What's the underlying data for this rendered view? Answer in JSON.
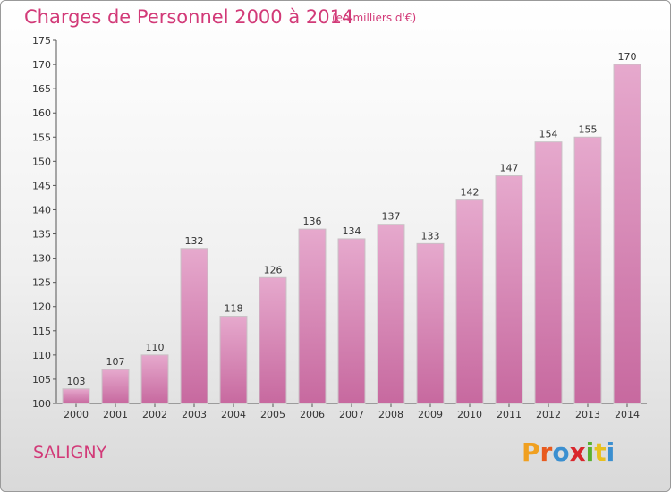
{
  "header": {
    "title": "Charges de Personnel 2000 à 2014",
    "subtitle": "(en milliers d'€)"
  },
  "commune": "SALIGNY",
  "logo": {
    "letters": [
      "P",
      "r",
      "o",
      "x",
      "i",
      "t",
      "i"
    ],
    "colors": [
      "#f0a020",
      "#e85a1e",
      "#3b8fd0",
      "#d9262c",
      "#5ab030",
      "#e8c020",
      "#3b8fd0"
    ]
  },
  "colors": {
    "bar": "#c7699f",
    "bar_light": "#e6a9cd",
    "text": "#d23a78"
  },
  "chart_data": {
    "type": "bar",
    "categories": [
      "2000",
      "2001",
      "2002",
      "2003",
      "2004",
      "2005",
      "2006",
      "2007",
      "2008",
      "2009",
      "2010",
      "2011",
      "2012",
      "2013",
      "2014"
    ],
    "values": [
      103,
      107,
      110,
      132,
      118,
      126,
      136,
      134,
      137,
      133,
      142,
      147,
      154,
      155,
      170
    ],
    "data_labels": [
      "103",
      "107",
      "110",
      "132",
      "118",
      "126",
      "136",
      "134",
      "137",
      "133",
      "142",
      "147",
      "154",
      "155",
      "170"
    ],
    "y_ticks": [
      "100",
      "105",
      "110",
      "115",
      "120",
      "125",
      "130",
      "135",
      "140",
      "145",
      "150",
      "155",
      "160",
      "165",
      "170",
      "175"
    ],
    "ylim": [
      100,
      175
    ],
    "grid": false,
    "legend": "none"
  }
}
